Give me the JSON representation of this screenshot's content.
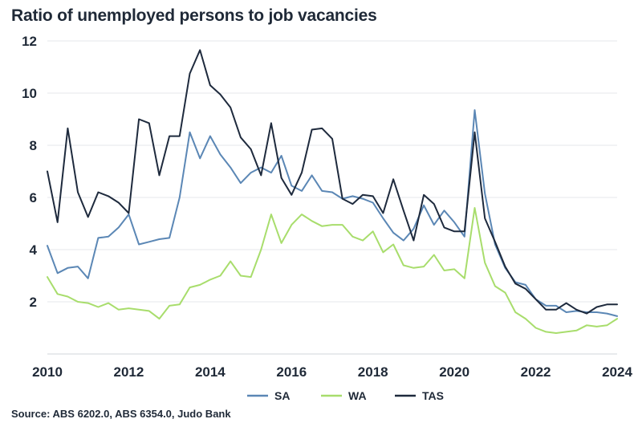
{
  "chart_data": {
    "type": "line",
    "title": "Ratio of unemployed persons to job vacancies",
    "source": "Source: ABS 6202.0, ABS 6354.0, Judo Bank",
    "xlabel": "",
    "ylabel": "",
    "xlim": [
      2010,
      2024
    ],
    "ylim": [
      0,
      12
    ],
    "x_ticks": [
      2010,
      2012,
      2014,
      2016,
      2018,
      2020,
      2022,
      2024
    ],
    "y_ticks": [
      2,
      4,
      6,
      8,
      10,
      12
    ],
    "grid": "horizontal",
    "legend_position": "bottom",
    "x": [
      2010.0,
      2010.25,
      2010.5,
      2010.75,
      2011.0,
      2011.25,
      2011.5,
      2011.75,
      2012.0,
      2012.25,
      2012.5,
      2012.75,
      2013.0,
      2013.25,
      2013.5,
      2013.75,
      2014.0,
      2014.25,
      2014.5,
      2014.75,
      2015.0,
      2015.25,
      2015.5,
      2015.75,
      2016.0,
      2016.25,
      2016.5,
      2016.75,
      2017.0,
      2017.25,
      2017.5,
      2017.75,
      2018.0,
      2018.25,
      2018.5,
      2018.75,
      2019.0,
      2019.25,
      2019.5,
      2019.75,
      2020.0,
      2020.25,
      2020.5,
      2020.75,
      2021.0,
      2021.25,
      2021.5,
      2021.75,
      2022.0,
      2022.25,
      2022.5,
      2022.75,
      2023.0,
      2023.25,
      2023.5,
      2023.75,
      2024.0
    ],
    "series": [
      {
        "name": "SA",
        "color": "#5b87b5",
        "values": [
          4.15,
          3.1,
          3.3,
          3.35,
          2.9,
          4.45,
          4.5,
          4.85,
          5.35,
          4.2,
          4.3,
          4.4,
          4.45,
          6.0,
          8.5,
          7.5,
          8.35,
          7.65,
          7.15,
          6.55,
          6.95,
          7.15,
          6.95,
          7.6,
          6.45,
          6.25,
          6.85,
          6.25,
          6.2,
          5.95,
          6.05,
          5.95,
          5.8,
          5.2,
          4.65,
          4.35,
          4.8,
          5.7,
          4.95,
          5.5,
          5.05,
          4.5,
          9.35,
          6.15,
          4.2,
          3.3,
          2.75,
          2.65,
          2.1,
          1.85,
          1.85,
          1.6,
          1.65,
          1.6,
          1.6,
          1.55,
          1.45
        ]
      },
      {
        "name": "WA",
        "color": "#a8dd6c",
        "values": [
          2.95,
          2.3,
          2.2,
          2.0,
          1.95,
          1.8,
          1.95,
          1.7,
          1.75,
          1.7,
          1.65,
          1.35,
          1.85,
          1.9,
          2.55,
          2.65,
          2.85,
          3.0,
          3.55,
          3.0,
          2.95,
          4.0,
          5.35,
          4.25,
          4.95,
          5.35,
          5.1,
          4.9,
          4.95,
          4.95,
          4.5,
          4.35,
          4.7,
          3.9,
          4.2,
          3.4,
          3.3,
          3.35,
          3.8,
          3.2,
          3.25,
          2.9,
          5.6,
          3.5,
          2.6,
          2.35,
          1.6,
          1.35,
          1.0,
          0.85,
          0.8,
          0.85,
          0.9,
          1.1,
          1.05,
          1.1,
          1.35
        ]
      },
      {
        "name": "TAS",
        "color": "#1e2a3d",
        "values": [
          7.0,
          5.05,
          8.65,
          6.2,
          5.25,
          6.2,
          6.05,
          5.8,
          5.4,
          9.0,
          8.85,
          6.85,
          8.35,
          8.35,
          10.75,
          11.65,
          10.3,
          9.95,
          9.45,
          8.3,
          7.85,
          6.85,
          8.85,
          6.75,
          6.1,
          6.95,
          8.6,
          8.65,
          8.25,
          5.95,
          5.75,
          6.1,
          6.05,
          5.4,
          6.7,
          5.5,
          4.35,
          6.1,
          5.75,
          4.85,
          4.7,
          4.7,
          8.5,
          5.2,
          4.3,
          3.35,
          2.7,
          2.5,
          2.1,
          1.7,
          1.7,
          1.95,
          1.7,
          1.55,
          1.8,
          1.9,
          1.9
        ]
      }
    ]
  }
}
